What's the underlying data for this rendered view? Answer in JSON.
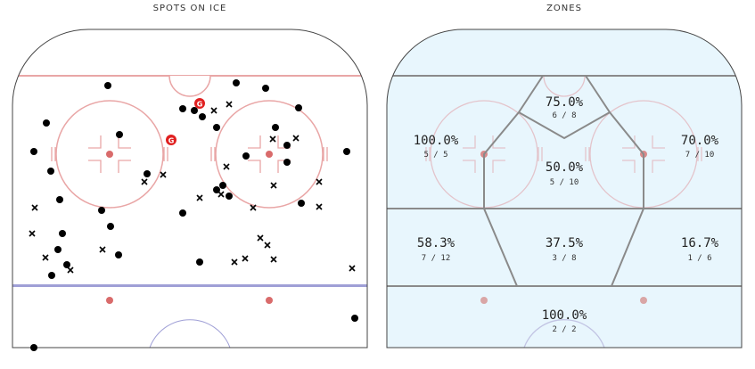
{
  "titles": {
    "left": "SPOTS ON ICE",
    "right": "ZONES"
  },
  "colors": {
    "red_line": "#e9a6a6",
    "blue_line": "#9f9fd6",
    "boards": "#444444",
    "zones_fill": "#e8f6fd",
    "zone_line": "#8a8a8a",
    "goal_marker": "#e02020",
    "shot_marker": "#000000"
  },
  "goal_label": "G",
  "zones": [
    {
      "id": "high-slot",
      "pct": "75.0%",
      "frac": "6 / 8"
    },
    {
      "id": "left-point",
      "pct": "100.0%",
      "frac": "5 / 5"
    },
    {
      "id": "right-point",
      "pct": "70.0%",
      "frac": "7 / 10"
    },
    {
      "id": "slot",
      "pct": "50.0%",
      "frac": "5 / 10"
    },
    {
      "id": "left-circle",
      "pct": "58.3%",
      "frac": "7 / 12"
    },
    {
      "id": "inner-slot",
      "pct": "37.5%",
      "frac": "3 / 8"
    },
    {
      "id": "right-circle",
      "pct": "16.7%",
      "frac": "1 / 6"
    },
    {
      "id": "crease",
      "pct": "100.0%",
      "frac": "2 / 2"
    }
  ]
}
